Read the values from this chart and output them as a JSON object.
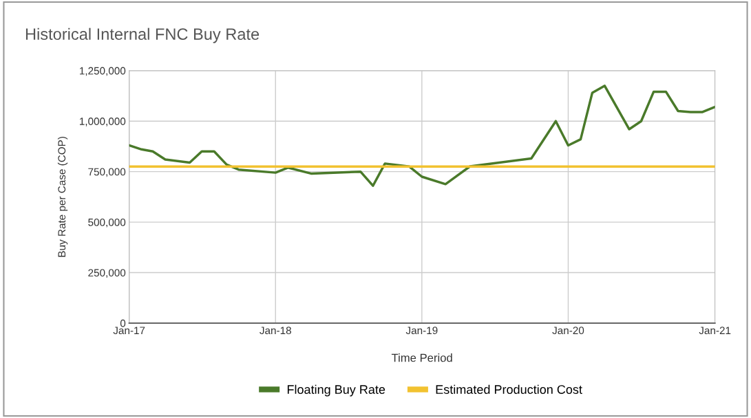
{
  "chart_data": {
    "type": "line",
    "title": "Historical Internal FNC Buy Rate",
    "xlabel": "Time Period",
    "ylabel": "Buy Rate per Case (COP)",
    "series": [
      {
        "name": "Floating Buy Rate",
        "color": "#4a7a2a",
        "x": [
          "2017-01",
          "2017-02",
          "2017-03",
          "2017-04",
          "2017-06",
          "2017-07",
          "2017-08",
          "2017-09",
          "2017-10",
          "2018-01",
          "2018-02",
          "2018-04",
          "2018-08",
          "2018-09",
          "2018-10",
          "2018-12",
          "2019-01",
          "2019-03",
          "2019-05",
          "2019-10",
          "2019-12",
          "2020-01",
          "2020-02",
          "2020-03",
          "2020-04",
          "2020-06",
          "2020-07",
          "2020-08",
          "2020-09",
          "2020-10",
          "2020-11",
          "2020-12",
          "2021-01"
        ],
        "values": [
          880000,
          860000,
          850000,
          810000,
          795000,
          850000,
          850000,
          785000,
          760000,
          745000,
          770000,
          740000,
          750000,
          680000,
          790000,
          775000,
          725000,
          688000,
          776000,
          815000,
          1000000,
          880000,
          910000,
          1140000,
          1175000,
          960000,
          1000000,
          1145000,
          1145000,
          1050000,
          1045000,
          1045000,
          1070000
        ]
      },
      {
        "name": "Estimated Production Cost",
        "color": "#f2c230",
        "x": [
          "2017-01",
          "2021-01"
        ],
        "values": [
          775000,
          775000
        ]
      }
    ],
    "xlim": [
      "2017-01",
      "2021-01"
    ],
    "xticks": [
      {
        "value": "2017-01",
        "label": "Jan-17"
      },
      {
        "value": "2018-01",
        "label": "Jan-18"
      },
      {
        "value": "2019-01",
        "label": "Jan-19"
      },
      {
        "value": "2020-01",
        "label": "Jan-20"
      },
      {
        "value": "2021-01",
        "label": "Jan-21"
      }
    ],
    "ylim": [
      0,
      1250000
    ],
    "yticks": [
      {
        "value": 0,
        "label": "0"
      },
      {
        "value": 250000,
        "label": "250,000"
      },
      {
        "value": 500000,
        "label": "500,000"
      },
      {
        "value": 750000,
        "label": "750,000"
      },
      {
        "value": 1000000,
        "label": "1,000,000"
      },
      {
        "value": 1250000,
        "label": "1,250,000"
      }
    ],
    "grid": true,
    "legend": "bottom",
    "marker": "none",
    "line_style": "solid"
  }
}
